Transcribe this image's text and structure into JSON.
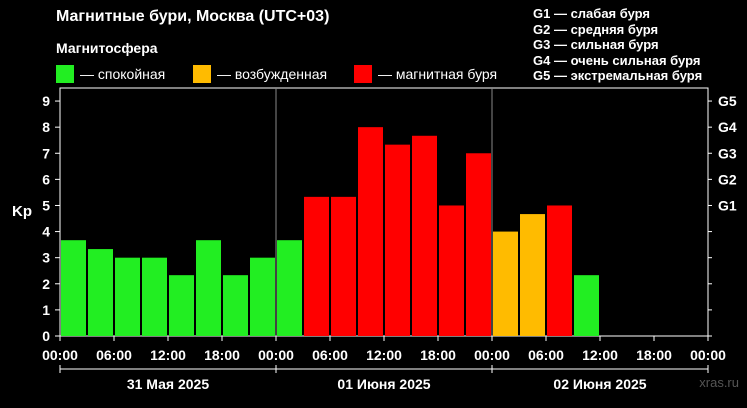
{
  "title": "Магнитные бури, Москва (UTC+03)",
  "subtitle": "Магнитосфера",
  "legend": [
    {
      "label": "— спокойная",
      "color": "#22ee22"
    },
    {
      "label": "— возбужденная",
      "color": "#ffbb00"
    },
    {
      "label": "— магнитная буря",
      "color": "#ff0000"
    }
  ],
  "g_scale": [
    "G1 — слабая буря",
    "G2 — средняя буря",
    "G3 — сильная буря",
    "G4 — очень сильная буря",
    "G5 — экстремальная буря"
  ],
  "watermark": "xras.ru",
  "chart_data": {
    "type": "bar",
    "ylabel": "Kp",
    "ylim": [
      0,
      9.5
    ],
    "y_ticks": [
      "0",
      "1",
      "2",
      "3",
      "4",
      "5",
      "6",
      "7",
      "8",
      "9"
    ],
    "g_ticks": [
      {
        "label": "G1",
        "kp": 5
      },
      {
        "label": "G2",
        "kp": 6
      },
      {
        "label": "G3",
        "kp": 7
      },
      {
        "label": "G4",
        "kp": 8
      },
      {
        "label": "G5",
        "kp": 9
      }
    ],
    "x_ticks": [
      "00:00",
      "06:00",
      "12:00",
      "18:00",
      "00:00",
      "06:00",
      "12:00",
      "18:00",
      "00:00",
      "06:00",
      "12:00",
      "18:00",
      "00:00"
    ],
    "days": [
      "31 Мая 2025",
      "01 Июня 2025",
      "02 Июня 2025"
    ],
    "interval_hours": 3,
    "total_slots": 24,
    "values": [
      3.67,
      3.33,
      3.0,
      3.0,
      2.33,
      3.67,
      2.33,
      3.0,
      3.67,
      5.33,
      5.33,
      8.0,
      7.33,
      7.67,
      5.0,
      7.0,
      4.0,
      4.67,
      5.0,
      2.33
    ],
    "colors": {
      "quiet": "#22ee22",
      "active": "#ffbb00",
      "storm": "#ff0000"
    }
  }
}
